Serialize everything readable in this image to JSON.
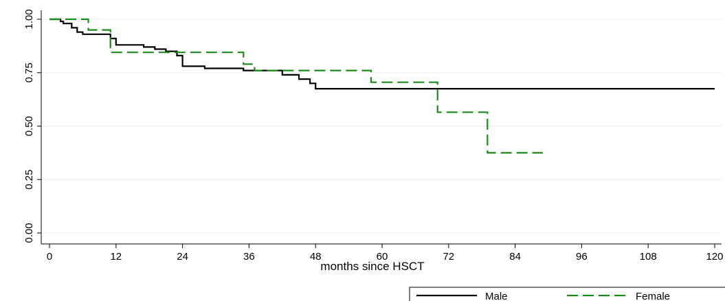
{
  "chart_data": {
    "type": "line",
    "step": true,
    "title": "",
    "xlabel": "months since HSCT",
    "ylabel": "",
    "xlim": [
      0,
      120
    ],
    "ylim": [
      0,
      1
    ],
    "x_ticks": [
      "0",
      "12",
      "24",
      "36",
      "48",
      "60",
      "72",
      "84",
      "96",
      "108",
      "120"
    ],
    "y_ticks": [
      "0.00",
      "0.25",
      "0.50",
      "0.75",
      "1.00"
    ],
    "grid": true,
    "legend_position": "bottom",
    "series": [
      {
        "name": "Male",
        "color": "#000000",
        "dash": "solid",
        "points": [
          [
            0,
            1.0
          ],
          [
            2,
            1.0
          ],
          [
            2,
            0.99
          ],
          [
            2.5,
            0.99
          ],
          [
            2.5,
            0.98
          ],
          [
            4,
            0.98
          ],
          [
            4,
            0.96
          ],
          [
            5,
            0.96
          ],
          [
            5,
            0.94
          ],
          [
            6,
            0.94
          ],
          [
            6,
            0.93
          ],
          [
            11,
            0.93
          ],
          [
            11,
            0.91
          ],
          [
            12,
            0.91
          ],
          [
            12,
            0.88
          ],
          [
            17,
            0.88
          ],
          [
            17,
            0.87
          ],
          [
            19,
            0.87
          ],
          [
            19,
            0.86
          ],
          [
            21,
            0.86
          ],
          [
            21,
            0.85
          ],
          [
            23,
            0.85
          ],
          [
            23,
            0.83
          ],
          [
            24,
            0.83
          ],
          [
            24,
            0.78
          ],
          [
            28,
            0.78
          ],
          [
            28,
            0.77
          ],
          [
            35,
            0.77
          ],
          [
            35,
            0.76
          ],
          [
            42,
            0.76
          ],
          [
            42,
            0.74
          ],
          [
            45,
            0.74
          ],
          [
            45,
            0.72
          ],
          [
            47,
            0.72
          ],
          [
            47,
            0.7
          ],
          [
            48,
            0.7
          ],
          [
            48,
            0.675
          ],
          [
            120,
            0.675
          ]
        ]
      },
      {
        "name": "Female",
        "color": "#1a8a1a",
        "dash": "long-dash",
        "points": [
          [
            0,
            1.0
          ],
          [
            7,
            1.0
          ],
          [
            7,
            0.95
          ],
          [
            11,
            0.95
          ],
          [
            11,
            0.845
          ],
          [
            35,
            0.845
          ],
          [
            35,
            0.79
          ],
          [
            37,
            0.79
          ],
          [
            37,
            0.76
          ],
          [
            58,
            0.76
          ],
          [
            58,
            0.705
          ],
          [
            70,
            0.705
          ],
          [
            70,
            0.565
          ],
          [
            79,
            0.565
          ],
          [
            79,
            0.375
          ],
          [
            89,
            0.375
          ]
        ]
      }
    ]
  }
}
